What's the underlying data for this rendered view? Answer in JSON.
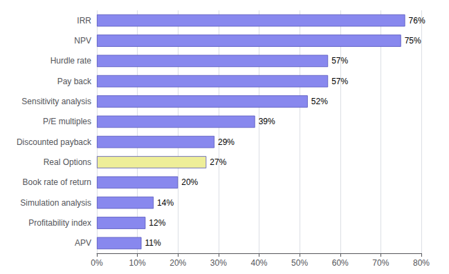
{
  "chart_data": {
    "type": "bar",
    "orientation": "horizontal",
    "categories": [
      "IRR",
      "NPV",
      "Hurdle rate",
      "Pay back",
      "Sensitivity analysis",
      "P/E multiples",
      "Discounted payback",
      "Real Options",
      "Book rate of return",
      "Simulation analysis",
      "Profitability index",
      "APV"
    ],
    "values": [
      76,
      75,
      57,
      57,
      52,
      39,
      29,
      27,
      20,
      14,
      12,
      11
    ],
    "value_labels": [
      "76%",
      "75%",
      "57%",
      "57%",
      "52%",
      "39%",
      "29%",
      "27%",
      "20%",
      "14%",
      "12%",
      "11%"
    ],
    "colors": [
      "#8888ee",
      "#8888ee",
      "#8888ee",
      "#8888ee",
      "#8888ee",
      "#8888ee",
      "#8888ee",
      "#eeee99",
      "#8888ee",
      "#8888ee",
      "#8888ee",
      "#8888ee"
    ],
    "xlim": [
      0,
      80
    ],
    "xticks": [
      {
        "value": 0,
        "label": "0%"
      },
      {
        "value": 10,
        "label": "10%"
      },
      {
        "value": 20,
        "label": "20%"
      },
      {
        "value": 30,
        "label": "30%"
      },
      {
        "value": 40,
        "label": "40%"
      },
      {
        "value": 50,
        "label": "50%"
      },
      {
        "value": 60,
        "label": "60%"
      },
      {
        "value": 70,
        "label": "70%"
      },
      {
        "value": 80,
        "label": "80%"
      }
    ],
    "grid": true,
    "data_labels": true
  }
}
